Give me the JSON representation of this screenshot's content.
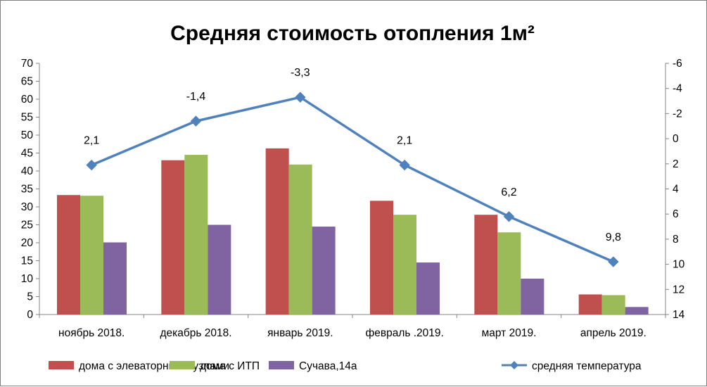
{
  "chart_data": {
    "type": "bar",
    "title": "Средняя стоимость отопления 1м²",
    "categories": [
      "ноябрь 2018.",
      "декабрь 2018.",
      "январь  2019.",
      "февраль .2019.",
      "март 2019.",
      "апрель  2019."
    ],
    "ylim": [
      0,
      70
    ],
    "y_ticks": [
      "0",
      "5",
      "10",
      "15",
      "20",
      "25",
      "30",
      "35",
      "40",
      "45",
      "50",
      "55",
      "60",
      "65",
      "70"
    ],
    "y2lim": [
      14,
      -6
    ],
    "y2_reversed": true,
    "y2_ticks": [
      "14",
      "12",
      "10",
      "8",
      "6",
      "4",
      "2",
      "0",
      "-2",
      "-4",
      "-6"
    ],
    "grid": false,
    "legend_position": "bottom",
    "series": [
      {
        "name": "дома с элеваторными узлами",
        "type": "bar",
        "color": "#c0504d",
        "values": [
          33.3,
          43.0,
          46.3,
          31.7,
          27.8,
          5.6
        ]
      },
      {
        "name": "дома с ИТП",
        "type": "bar",
        "color": "#9bbb59",
        "values": [
          33.1,
          44.5,
          41.8,
          27.8,
          22.9,
          5.4
        ]
      },
      {
        "name": "Сучава,14а",
        "type": "bar",
        "color": "#8064a2",
        "values": [
          20.1,
          25.0,
          24.5,
          14.5,
          10.0,
          2.1
        ]
      },
      {
        "name": "средняя температура",
        "type": "line",
        "axis": "secondary",
        "color": "#4f81bd",
        "marker": "diamond",
        "values": [
          2.1,
          -1.4,
          -3.3,
          2.1,
          6.2,
          9.8
        ],
        "data_labels": [
          "2,1",
          "-1,4",
          "-3,3",
          "2,1",
          "6,2",
          "9,8"
        ]
      }
    ]
  }
}
